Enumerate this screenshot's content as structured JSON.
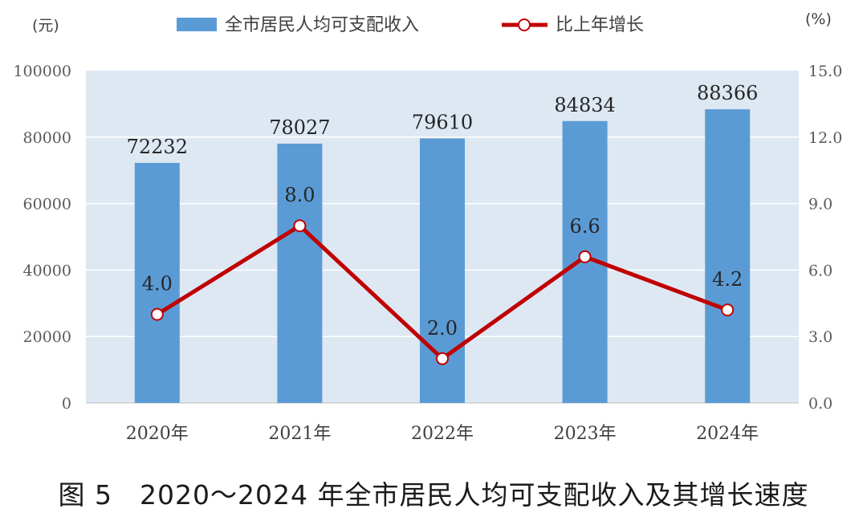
{
  "chart_data": {
    "type": "bar+line",
    "categories": [
      "2020年",
      "2021年",
      "2022年",
      "2023年",
      "2024年"
    ],
    "series": [
      {
        "name": "全市居民人均可支配收入",
        "type": "bar",
        "axis": "left",
        "values": [
          72232,
          78027,
          79610,
          84834,
          88366
        ],
        "labels": [
          "72232",
          "78027",
          "79610",
          "84834",
          "88366"
        ]
      },
      {
        "name": "比上年增长",
        "type": "line",
        "axis": "right",
        "values": [
          4.0,
          8.0,
          2.0,
          6.6,
          4.2
        ],
        "labels": [
          "4.0",
          "8.0",
          "2.0",
          "6.6",
          "4.2"
        ]
      }
    ],
    "left_axis": {
      "unit": "(元)",
      "ylim": [
        0,
        100000
      ],
      "ticks": [
        "0",
        "20000",
        "40000",
        "60000",
        "80000",
        "100000"
      ]
    },
    "right_axis": {
      "unit": "(%)",
      "ylim": [
        0,
        15
      ],
      "ticks": [
        "0.0",
        "3.0",
        "6.0",
        "9.0",
        "12.0",
        "15.0"
      ]
    },
    "grid": true,
    "legend_position": "top-center",
    "caption": "图 5　2020～2024 年全市居民人均可支配收入及其增长速度",
    "colors": {
      "bar": "#5b9bd5",
      "line": "#c00000",
      "plot_bg": "#dde8f3",
      "grid": "#ffffff",
      "marker_fill": "#ffffff"
    }
  }
}
